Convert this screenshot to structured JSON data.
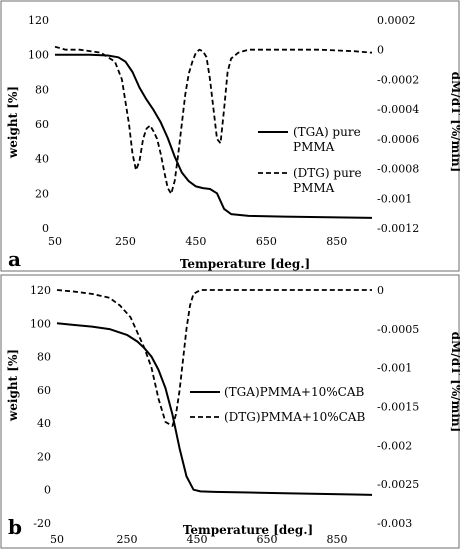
{
  "chart_data": [
    {
      "panel": "a",
      "type": "line",
      "xlabel": "Temperature [deg.]",
      "ylabel": "weight [%]",
      "y2label": "dM/dT [%/min]",
      "xlim": [
        50,
        950
      ],
      "ylim": [
        0,
        120
      ],
      "y2lim": [
        -0.0012,
        0.0002
      ],
      "xticks": [
        "50",
        "250",
        "450",
        "650",
        "850"
      ],
      "yticks": [
        "0",
        "20",
        "40",
        "60",
        "80",
        "100",
        "120"
      ],
      "y2ticks": [
        "-0.0012",
        "-0.001",
        "-0.0008",
        "-0.0006",
        "-0.0004",
        "-0.0002",
        "0",
        "0.0002"
      ],
      "grid": false,
      "legend_position": "right",
      "series": [
        {
          "name": "(TGA) pure PMMA",
          "axis": "left",
          "style": "solid",
          "x": [
            50,
            100,
            150,
            200,
            230,
            250,
            270,
            290,
            310,
            330,
            350,
            370,
            390,
            410,
            430,
            450,
            470,
            490,
            510,
            530,
            550,
            600,
            650,
            700,
            800,
            900,
            950
          ],
          "y": [
            100,
            100,
            100,
            99.5,
            98.5,
            96,
            90,
            81,
            74,
            68,
            61,
            52,
            41,
            32,
            27,
            24,
            23,
            22.5,
            20,
            11,
            8,
            7,
            6.8,
            6.6,
            6.3,
            6,
            5.8
          ]
        },
        {
          "name": "(DTG) pure PMMA",
          "axis": "right",
          "style": "dashed",
          "x": [
            50,
            80,
            120,
            180,
            220,
            240,
            260,
            270,
            280,
            290,
            300,
            310,
            320,
            330,
            340,
            350,
            360,
            370,
            380,
            390,
            400,
            410,
            420,
            430,
            440,
            450,
            460,
            470,
            480,
            490,
            500,
            510,
            520,
            530,
            540,
            550,
            570,
            600,
            650,
            700,
            800,
            900,
            950
          ],
          "y": [
            2e-05,
            0,
            0,
            -2e-05,
            -8e-05,
            -0.0002,
            -0.0005,
            -0.0007,
            -0.00081,
            -0.00075,
            -0.0006,
            -0.00053,
            -0.00051,
            -0.00055,
            -0.0006,
            -0.0007,
            -0.00082,
            -0.00093,
            -0.00097,
            -0.00088,
            -0.0007,
            -0.0005,
            -0.0003,
            -0.00016,
            -8e-05,
            -2e-05,
            0,
            -1e-05,
            -5e-05,
            -0.0002,
            -0.0004,
            -0.0006,
            -0.00063,
            -0.0004,
            -0.00015,
            -6e-05,
            -2e-05,
            0,
            0,
            0,
            0,
            -1e-05,
            -2e-05
          ]
        }
      ]
    },
    {
      "panel": "b",
      "type": "line",
      "xlabel": "Temperature [deg.]",
      "ylabel": "weight [%]",
      "y2label": "dM/dT [%/min]",
      "xlim": [
        50,
        950
      ],
      "ylim": [
        -20,
        120
      ],
      "y2lim": [
        -0.003,
        0
      ],
      "xticks": [
        "50",
        "250",
        "450",
        "650",
        "850"
      ],
      "yticks": [
        "-20",
        "0",
        "20",
        "40",
        "60",
        "80",
        "100",
        "120"
      ],
      "y2ticks": [
        "-0.003",
        "-0.0025",
        "-0.002",
        "-0.0015",
        "-0.001",
        "-0.0005",
        "0"
      ],
      "grid": false,
      "legend_position": "right",
      "series": [
        {
          "name": "(TGA)PMMA+10%CAB",
          "axis": "left",
          "style": "solid",
          "x": [
            50,
            100,
            150,
            200,
            250,
            280,
            300,
            320,
            340,
            360,
            380,
            400,
            420,
            440,
            460,
            500,
            600,
            700,
            800,
            900,
            950
          ],
          "y": [
            100,
            99,
            98,
            96.5,
            93,
            89,
            85,
            80,
            72,
            61,
            45,
            25,
            8,
            0,
            -1,
            -1.3,
            -1.7,
            -2.1,
            -2.5,
            -2.9,
            -3.1
          ]
        },
        {
          "name": "(DTG)PMMA+10%CAB",
          "axis": "right",
          "style": "dashed",
          "x": [
            50,
            100,
            150,
            200,
            230,
            260,
            280,
            300,
            320,
            340,
            360,
            380,
            390,
            400,
            410,
            420,
            430,
            440,
            460,
            500,
            600,
            700,
            800,
            900,
            950
          ],
          "y": [
            0,
            -2e-05,
            -5e-05,
            -0.0001,
            -0.0002,
            -0.00035,
            -0.00055,
            -0.00075,
            -0.001,
            -0.0014,
            -0.0017,
            -0.00175,
            -0.0016,
            -0.0013,
            -0.0009,
            -0.0005,
            -0.0002,
            -5e-05,
            0,
            0,
            0,
            0,
            0,
            0,
            0
          ]
        }
      ]
    }
  ]
}
